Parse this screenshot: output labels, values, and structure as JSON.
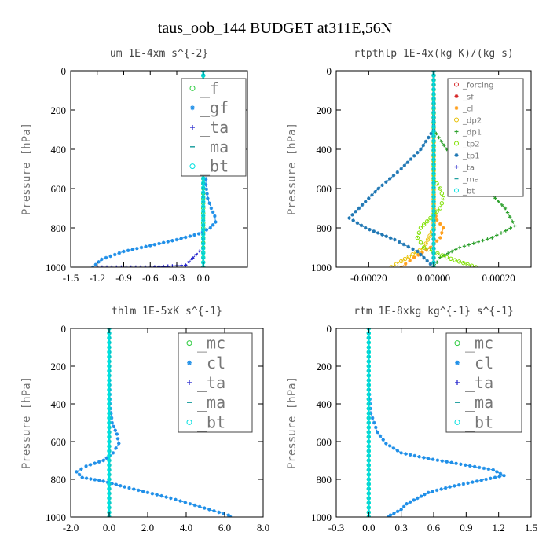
{
  "figure_title": "taus_oob_144  BUDGET at311E,56N",
  "chart_data": [
    {
      "type": "line",
      "title": "um  1E-4xm s^{-2}",
      "ylabel": "Pressure [hPa]",
      "xlim": [
        -1.5,
        0.5
      ],
      "ylim": [
        1000,
        0
      ],
      "xticks": [
        "-1.5",
        "-1.2",
        "-0.9",
        "-0.6",
        "-0.3",
        "0.0"
      ],
      "xtick_values": [
        -1.5,
        -1.2,
        -0.9,
        -0.6,
        -0.3,
        0.0
      ],
      "yticks": [
        "0",
        "200",
        "400",
        "600",
        "800",
        "1000"
      ],
      "ytick_values": [
        0,
        200,
        400,
        600,
        800,
        1000
      ],
      "legend_size": "large",
      "series": [
        {
          "name": "_f",
          "color": "#2ecc40",
          "marker": "o",
          "points": [
            [
              0.0,
              0
            ],
            [
              0.0,
              100
            ],
            [
              0.0,
              200
            ],
            [
              0.0,
              300
            ],
            [
              0.0,
              400
            ],
            [
              0.0,
              500
            ],
            [
              0.0,
              600
            ],
            [
              0.0,
              700
            ],
            [
              0.0,
              800
            ],
            [
              0.0,
              900
            ],
            [
              0.0,
              1000
            ]
          ]
        },
        {
          "name": "_gf",
          "color": "#1f8fe8",
          "marker": "*",
          "points": [
            [
              0.0,
              0
            ],
            [
              0.0,
              100
            ],
            [
              0.01,
              180
            ],
            [
              0.02,
              300
            ],
            [
              0.02,
              400
            ],
            [
              0.03,
              500
            ],
            [
              0.03,
              580
            ],
            [
              0.05,
              650
            ],
            [
              0.09,
              700
            ],
            [
              0.13,
              740
            ],
            [
              0.14,
              770
            ],
            [
              0.08,
              800
            ],
            [
              -0.05,
              830
            ],
            [
              -0.3,
              860
            ],
            [
              -0.6,
              890
            ],
            [
              -0.9,
              920
            ],
            [
              -1.15,
              960
            ],
            [
              -1.25,
              1000
            ]
          ]
        },
        {
          "name": "_ta",
          "color": "#2020cc",
          "marker": "+",
          "points": [
            [
              0.0,
              0
            ],
            [
              0.0,
              300
            ],
            [
              0.0,
              600
            ],
            [
              0.0,
              900
            ],
            [
              -0.2,
              990
            ],
            [
              -0.6,
              1000
            ],
            [
              -1.2,
              1000
            ]
          ]
        },
        {
          "name": "_ma",
          "color": "#20a0a0",
          "marker": "-",
          "points": [
            [
              0.0,
              0
            ],
            [
              0.0,
              500
            ],
            [
              0.0,
              1000
            ]
          ]
        },
        {
          "name": "_bt",
          "color": "#00e0e0",
          "marker": "o",
          "points": [
            [
              0.0,
              0
            ],
            [
              0.0,
              500
            ],
            [
              0.0,
              1000
            ]
          ]
        }
      ]
    },
    {
      "type": "line",
      "title": "rtpthlp  1E-4x(kg K)/(kg s)",
      "ylabel": "Pressure [hPa]",
      "xlim": [
        -0.0003,
        0.0003
      ],
      "ylim": [
        1000,
        0
      ],
      "xticks": [
        "-0.00020",
        "0.00000",
        "0.00020"
      ],
      "xtick_values": [
        -0.0002,
        0.0,
        0.0002
      ],
      "yticks": [
        "0",
        "200",
        "400",
        "600",
        "800",
        "1000"
      ],
      "ytick_values": [
        0,
        200,
        400,
        600,
        800,
        1000
      ],
      "legend_size": "small",
      "series": [
        {
          "name": "_forcing",
          "color": "#d62728",
          "marker": "o",
          "points": [
            [
              0.0,
              0
            ],
            [
              0.0,
              1000
            ]
          ]
        },
        {
          "name": "_sf",
          "color": "#d62728",
          "marker": "*",
          "points": [
            [
              0.0,
              0
            ],
            [
              0.0,
              1000
            ]
          ]
        },
        {
          "name": "_cl",
          "color": "#ff9f1c",
          "marker": "*",
          "points": [
            [
              0.0,
              0
            ],
            [
              0.0,
              700
            ],
            [
              1e-05,
              760
            ],
            [
              3e-05,
              800
            ],
            [
              2e-05,
              850
            ],
            [
              -1e-05,
              900
            ],
            [
              -6e-05,
              950
            ],
            [
              -0.0001,
              1000
            ]
          ]
        },
        {
          "name": "_dp2",
          "color": "#e8c000",
          "marker": "o",
          "points": [
            [
              0.0,
              0
            ],
            [
              0.0,
              800
            ],
            [
              -3e-05,
              900
            ],
            [
              -0.0001,
              970
            ],
            [
              -0.00013,
              1000
            ]
          ]
        },
        {
          "name": "_dp1",
          "color": "#2ca02c",
          "marker": "+",
          "points": [
            [
              0.0,
              0
            ],
            [
              0.0,
              300
            ],
            [
              4e-05,
              400
            ],
            [
              0.0001,
              500
            ],
            [
              0.00016,
              600
            ],
            [
              0.00022,
              700
            ],
            [
              0.00025,
              790
            ],
            [
              0.00018,
              850
            ],
            [
              8e-05,
              900
            ],
            [
              2e-05,
              950
            ],
            [
              0.0,
              1000
            ]
          ]
        },
        {
          "name": "_tp2",
          "color": "#7fe000",
          "marker": "o",
          "points": [
            [
              0.0,
              0
            ],
            [
              0.0,
              550
            ],
            [
              2e-05,
              600
            ],
            [
              3e-05,
              650
            ],
            [
              2e-05,
              700
            ],
            [
              -1e-05,
              750
            ],
            [
              -4e-05,
              800
            ],
            [
              -5e-05,
              850
            ],
            [
              -3e-05,
              900
            ],
            [
              4e-05,
              950
            ],
            [
              0.00013,
              1000
            ]
          ]
        },
        {
          "name": "_tp1",
          "color": "#1f77b4",
          "marker": "*",
          "points": [
            [
              0.0,
              0
            ],
            [
              0.0,
              300
            ],
            [
              -4e-05,
              400
            ],
            [
              -0.0001,
              500
            ],
            [
              -0.00017,
              600
            ],
            [
              -0.00023,
              700
            ],
            [
              -0.00026,
              750
            ],
            [
              -0.00021,
              800
            ],
            [
              -0.00012,
              860
            ],
            [
              -5e-05,
              920
            ],
            [
              0.0,
              1000
            ]
          ]
        },
        {
          "name": "_ta",
          "color": "#2020cc",
          "marker": "+",
          "points": [
            [
              0.0,
              0
            ],
            [
              0.0,
              1000
            ]
          ]
        },
        {
          "name": "_ma",
          "color": "#20a0a0",
          "marker": "-",
          "points": [
            [
              0.0,
              0
            ],
            [
              0.0,
              1000
            ]
          ]
        },
        {
          "name": "_bt",
          "color": "#00e0e0",
          "marker": "o",
          "points": [
            [
              0.0,
              0
            ],
            [
              0.0,
              1000
            ]
          ]
        }
      ]
    },
    {
      "type": "line",
      "title": "thlm  1E-5xK s^{-1}",
      "ylabel": "Pressure [hPa]",
      "xlim": [
        -2.0,
        8.0
      ],
      "ylim": [
        1000,
        0
      ],
      "xticks": [
        "-2.0",
        "0.0",
        "2.0",
        "4.0",
        "6.0",
        "8.0"
      ],
      "xtick_values": [
        -2.0,
        0.0,
        2.0,
        4.0,
        6.0,
        8.0
      ],
      "yticks": [
        "0",
        "200",
        "400",
        "600",
        "800",
        "1000"
      ],
      "ytick_values": [
        0,
        200,
        400,
        600,
        800,
        1000
      ],
      "legend_size": "large",
      "series": [
        {
          "name": "_mc",
          "color": "#2ecc40",
          "marker": "o",
          "points": [
            [
              0.0,
              0
            ],
            [
              0.0,
              100
            ],
            [
              0.0,
              200
            ],
            [
              0.0,
              300
            ],
            [
              0.0,
              400
            ],
            [
              0.0,
              500
            ],
            [
              0.0,
              600
            ],
            [
              0.0,
              700
            ],
            [
              0.0,
              800
            ],
            [
              0.0,
              900
            ],
            [
              0.0,
              1000
            ]
          ]
        },
        {
          "name": "_cl",
          "color": "#1f8fe8",
          "marker": "*",
          "points": [
            [
              0.0,
              0
            ],
            [
              0.0,
              200
            ],
            [
              0.05,
              400
            ],
            [
              0.15,
              500
            ],
            [
              0.4,
              560
            ],
            [
              0.5,
              610
            ],
            [
              0.2,
              660
            ],
            [
              -0.3,
              700
            ],
            [
              -1.2,
              730
            ],
            [
              -1.7,
              760
            ],
            [
              -1.4,
              790
            ],
            [
              -0.3,
              810
            ],
            [
              0.8,
              840
            ],
            [
              2.0,
              870
            ],
            [
              3.2,
              900
            ],
            [
              4.2,
              930
            ],
            [
              5.2,
              960
            ],
            [
              6.2,
              990
            ],
            [
              6.3,
              1000
            ]
          ]
        },
        {
          "name": "_ta",
          "color": "#2020cc",
          "marker": "+",
          "points": [
            [
              0.0,
              0
            ],
            [
              0.0,
              500
            ],
            [
              0.0,
              1000
            ]
          ]
        },
        {
          "name": "_ma",
          "color": "#20a0a0",
          "marker": "-",
          "points": [
            [
              0.0,
              0
            ],
            [
              0.0,
              500
            ],
            [
              0.0,
              1000
            ]
          ]
        },
        {
          "name": "_bt",
          "color": "#00e0e0",
          "marker": "o",
          "points": [
            [
              0.0,
              0
            ],
            [
              0.0,
              500
            ],
            [
              0.0,
              1000
            ]
          ]
        }
      ]
    },
    {
      "type": "line",
      "title": "rtm  1E-8xkg kg^{-1} s^{-1}",
      "ylabel": "Pressure [hPa]",
      "xlim": [
        -0.3,
        1.5
      ],
      "ylim": [
        1000,
        0
      ],
      "xticks": [
        "-0.3",
        "0.0",
        "0.3",
        "0.6",
        "0.9",
        "1.2",
        "1.5"
      ],
      "xtick_values": [
        -0.3,
        0.0,
        0.3,
        0.6,
        0.9,
        1.2,
        1.5
      ],
      "yticks": [
        "0",
        "200",
        "400",
        "600",
        "800",
        "1000"
      ],
      "ytick_values": [
        0,
        200,
        400,
        600,
        800,
        1000
      ],
      "legend_size": "large",
      "series": [
        {
          "name": "_mc",
          "color": "#2ecc40",
          "marker": "o",
          "points": [
            [
              0.0,
              0
            ],
            [
              0.0,
              100
            ],
            [
              0.0,
              200
            ],
            [
              0.0,
              300
            ],
            [
              0.0,
              400
            ],
            [
              0.0,
              500
            ],
            [
              0.0,
              600
            ],
            [
              0.0,
              700
            ],
            [
              0.0,
              800
            ],
            [
              0.0,
              900
            ],
            [
              0.0,
              1000
            ]
          ]
        },
        {
          "name": "_cl",
          "color": "#1f8fe8",
          "marker": "*",
          "points": [
            [
              0.0,
              0
            ],
            [
              0.0,
              300
            ],
            [
              0.02,
              450
            ],
            [
              0.08,
              550
            ],
            [
              0.16,
              610
            ],
            [
              0.3,
              660
            ],
            [
              0.55,
              690
            ],
            [
              0.85,
              720
            ],
            [
              1.15,
              750
            ],
            [
              1.25,
              780
            ],
            [
              1.0,
              810
            ],
            [
              0.75,
              840
            ],
            [
              0.55,
              870
            ],
            [
              0.45,
              900
            ],
            [
              0.35,
              930
            ],
            [
              0.3,
              960
            ],
            [
              0.2,
              990
            ],
            [
              0.18,
              1000
            ]
          ]
        },
        {
          "name": "_ta",
          "color": "#2020cc",
          "marker": "+",
          "points": [
            [
              0.0,
              0
            ],
            [
              0.0,
              500
            ],
            [
              0.0,
              1000
            ]
          ]
        },
        {
          "name": "_ma",
          "color": "#20a0a0",
          "marker": "-",
          "points": [
            [
              0.0,
              0
            ],
            [
              0.0,
              500
            ],
            [
              0.0,
              1000
            ]
          ]
        },
        {
          "name": "_bt",
          "color": "#00e0e0",
          "marker": "o",
          "points": [
            [
              0.0,
              0
            ],
            [
              0.0,
              500
            ],
            [
              0.0,
              1000
            ]
          ]
        }
      ]
    }
  ]
}
